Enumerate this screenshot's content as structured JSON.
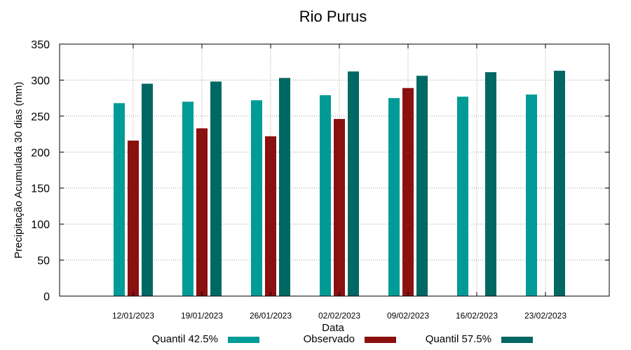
{
  "chart_data": {
    "type": "bar",
    "title": "Rio Purus",
    "xlabel": "Data",
    "ylabel": "Precipitação Acumulada 30 dias (mm)",
    "ylim": [
      0,
      350
    ],
    "yticks": [
      0,
      50,
      100,
      150,
      200,
      250,
      300,
      350
    ],
    "grid": true,
    "legend_position": "bottom",
    "categories": [
      "12/01/2023",
      "19/01/2023",
      "26/01/2023",
      "02/02/2023",
      "09/02/2023",
      "16/02/2023",
      "23/02/2023"
    ],
    "series": [
      {
        "name": "Quantil 42.5%",
        "color": "#009b96",
        "values": [
          268,
          270,
          272,
          279,
          275,
          277,
          280
        ]
      },
      {
        "name": "Observado",
        "color": "#8b1010",
        "values": [
          216,
          233,
          222,
          246,
          289,
          null,
          null
        ]
      },
      {
        "name": "Quantil 57.5%",
        "color": "#006863",
        "values": [
          295,
          298,
          303,
          312,
          306,
          311,
          313
        ]
      }
    ]
  }
}
